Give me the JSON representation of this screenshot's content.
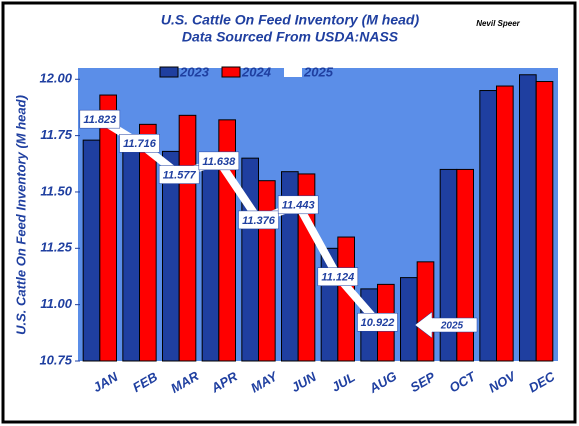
{
  "chart_data": {
    "type": "bar",
    "title": "U.S. Cattle On Feed Inventory (M head)",
    "subtitle": "Data Sourced From USDA:NASS",
    "author": "Nevil Speer",
    "y_label": "U.S. Cattle On Feed Inventory (M head)",
    "annotation": "2025",
    "categories": [
      "JAN",
      "FEB",
      "MAR",
      "APR",
      "MAY",
      "JUN",
      "JUL",
      "AUG",
      "SEP",
      "OCT",
      "NOV",
      "DEC"
    ],
    "series": [
      {
        "name": "2023",
        "color": "#1f3fa0",
        "values": [
          11.73,
          11.7,
          11.68,
          11.62,
          11.65,
          11.59,
          11.25,
          11.07,
          11.12,
          11.6,
          11.95,
          12.02
        ]
      },
      {
        "name": "2024",
        "color": "#ff0000",
        "values": [
          11.93,
          11.8,
          11.84,
          11.82,
          11.55,
          11.58,
          11.3,
          11.09,
          11.19,
          11.6,
          11.97,
          11.99
        ]
      },
      {
        "name": "2025",
        "color": "#ffffff",
        "values": [
          11.823,
          11.716,
          11.577,
          11.638,
          11.376,
          11.443,
          11.124,
          10.922,
          null,
          null,
          null,
          null
        ]
      }
    ],
    "ylim": [
      10.75,
      12.05
    ],
    "yticks": [
      10.75,
      {
        "value": 11,
        "label": "11.00"
      },
      11.25,
      {
        "value": 11.5,
        "label": "11.50"
      },
      11.75,
      {
        "value": 12,
        "label": "12.00"
      }
    ]
  }
}
